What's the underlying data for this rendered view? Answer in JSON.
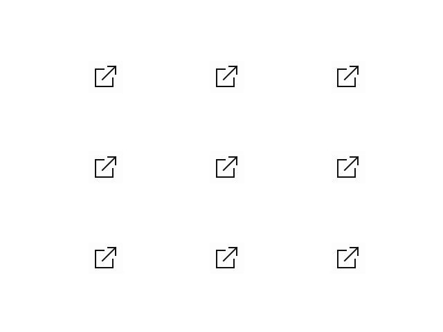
{
  "icons": [
    {
      "icon": "external-link-icon",
      "row": 1,
      "col": 1
    },
    {
      "icon": "external-link-icon",
      "row": 1,
      "col": 2
    },
    {
      "icon": "external-link-icon",
      "row": 1,
      "col": 3
    },
    {
      "icon": "external-link-icon",
      "row": 2,
      "col": 1
    },
    {
      "icon": "external-link-icon",
      "row": 2,
      "col": 2
    },
    {
      "icon": "external-link-icon",
      "row": 2,
      "col": 3
    },
    {
      "icon": "external-link-icon",
      "row": 3,
      "col": 1
    },
    {
      "icon": "external-link-icon",
      "row": 3,
      "col": 2
    },
    {
      "icon": "external-link-icon",
      "row": 3,
      "col": 3
    }
  ],
  "colors": {
    "background": "#ffffff",
    "icon_stroke": "#111111"
  }
}
